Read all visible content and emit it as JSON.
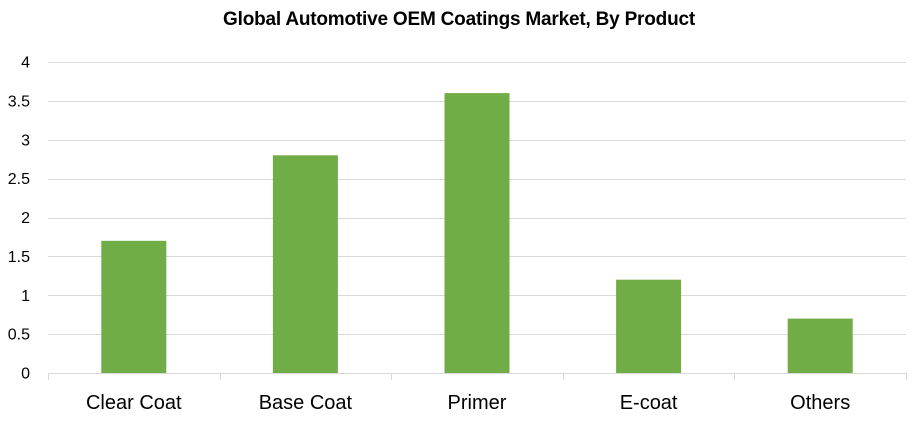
{
  "chart_data": {
    "type": "bar",
    "title": "Global Automotive OEM Coatings Market, By Product",
    "xlabel": "",
    "ylabel": "",
    "categories": [
      "Clear Coat",
      "Base Coat",
      "Primer",
      "E-coat",
      "Others"
    ],
    "values": [
      1.7,
      2.8,
      3.6,
      1.2,
      0.7
    ],
    "ylim": [
      0,
      4
    ],
    "yticks": [
      "0",
      "0.5",
      "1",
      "1.5",
      "2",
      "2.5",
      "3",
      "3.5",
      "4"
    ],
    "grid": true,
    "legend": "none",
    "bar_color": "#70ad47",
    "grid_color": "#d9d9d9"
  }
}
